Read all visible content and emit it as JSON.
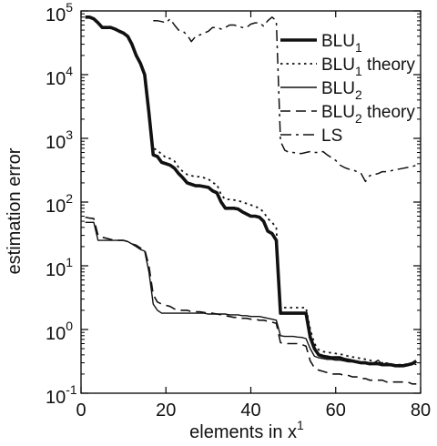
{
  "chart_data": {
    "type": "line",
    "title": "",
    "xlabel": "elements in x",
    "xlabel_sup": "1",
    "ylabel": "estimation error",
    "xlim": [
      0,
      80
    ],
    "ylim": [
      0.1,
      100000
    ],
    "yscale": "log",
    "grid": false,
    "legend_position": "top-right",
    "xticks": [
      {
        "value": 0,
        "label": "0"
      },
      {
        "value": 20,
        "label": "20"
      },
      {
        "value": 40,
        "label": "40"
      },
      {
        "value": 60,
        "label": "60"
      },
      {
        "value": 80,
        "label": "80"
      }
    ],
    "yticks": [
      {
        "value": 0.1,
        "base": "10",
        "exp": "-1"
      },
      {
        "value": 1,
        "base": "10",
        "exp": "0"
      },
      {
        "value": 10,
        "base": "10",
        "exp": "1"
      },
      {
        "value": 100,
        "base": "10",
        "exp": "2"
      },
      {
        "value": 1000,
        "base": "10",
        "exp": "3"
      },
      {
        "value": 10000,
        "base": "10",
        "exp": "4"
      },
      {
        "value": 100000,
        "base": "10",
        "exp": "5"
      }
    ],
    "series": [
      {
        "name": "BLU",
        "sub": "1",
        "suffix": "",
        "style": "solid-thick",
        "color": "#111111",
        "x": [
          1,
          2,
          3,
          4,
          5,
          6,
          7,
          8,
          9,
          10,
          11,
          12,
          13,
          14,
          15,
          16,
          17,
          18,
          19,
          20,
          21,
          22,
          23,
          24,
          25,
          26,
          27,
          28,
          29,
          30,
          31,
          32,
          33,
          34,
          35,
          36,
          37,
          38,
          39,
          40,
          41,
          42,
          43,
          44,
          45,
          46,
          47,
          48,
          49,
          50,
          51,
          52,
          53,
          54,
          55,
          56,
          57,
          58,
          59,
          60,
          61,
          62,
          63,
          64,
          65,
          66,
          67,
          68,
          69,
          70,
          71,
          72,
          73,
          74,
          75,
          76,
          77,
          78,
          79
        ],
        "y": [
          80000,
          80000,
          75000,
          65000,
          55000,
          55000,
          55000,
          52000,
          48000,
          45000,
          40000,
          30000,
          20000,
          15000,
          10000,
          2500,
          550,
          520,
          420,
          400,
          380,
          340,
          280,
          240,
          200,
          190,
          180,
          180,
          175,
          170,
          150,
          140,
          100,
          80,
          80,
          80,
          78,
          70,
          65,
          60,
          60,
          58,
          50,
          35,
          32,
          25,
          1.8,
          1.8,
          1.8,
          1.8,
          1.8,
          1.8,
          1.8,
          0.75,
          0.5,
          0.4,
          0.38,
          0.37,
          0.36,
          0.36,
          0.36,
          0.34,
          0.33,
          0.32,
          0.31,
          0.3,
          0.3,
          0.29,
          0.29,
          0.29,
          0.28,
          0.28,
          0.28,
          0.27,
          0.27,
          0.27,
          0.28,
          0.29,
          0.32
        ]
      },
      {
        "name": "BLU",
        "sub": "1",
        "suffix": " theory",
        "style": "dotted",
        "color": "#111111",
        "x": [
          1,
          2,
          3,
          4,
          5,
          6,
          7,
          8,
          9,
          10,
          11,
          12,
          13,
          14,
          15,
          16,
          17,
          18,
          19,
          20,
          21,
          22,
          23,
          24,
          25,
          26,
          27,
          28,
          29,
          30,
          31,
          32,
          33,
          34,
          35,
          36,
          37,
          38,
          39,
          40,
          41,
          42,
          43,
          44,
          45,
          46,
          47,
          48,
          49,
          50,
          51,
          52,
          53,
          54,
          55,
          56,
          57,
          58,
          59,
          60,
          61,
          62,
          63,
          64,
          65,
          66,
          67,
          68,
          69,
          70,
          71,
          72,
          73,
          74,
          75,
          76,
          77,
          78,
          79
        ],
        "y": [
          80000,
          80000,
          75000,
          65000,
          55000,
          55000,
          55000,
          52000,
          48000,
          45000,
          40000,
          30000,
          20000,
          15000,
          10000,
          2600,
          700,
          650,
          560,
          500,
          480,
          440,
          350,
          300,
          270,
          260,
          250,
          250,
          240,
          230,
          200,
          190,
          130,
          110,
          110,
          108,
          105,
          100,
          95,
          90,
          85,
          80,
          70,
          55,
          48,
          40,
          2.3,
          2.2,
          2.2,
          2.2,
          2.2,
          2.2,
          2.2,
          1.0,
          0.6,
          0.48,
          0.45,
          0.44,
          0.43,
          0.42,
          0.41,
          0.4,
          0.38,
          0.37,
          0.36,
          0.35,
          0.34,
          0.33,
          0.31,
          0.3,
          0.3,
          0.29,
          0.28,
          0.28,
          0.28,
          0.28,
          0.29,
          0.3,
          0.31
        ]
      },
      {
        "name": "BLU",
        "sub": "2",
        "suffix": "",
        "style": "solid-thin",
        "color": "#111111",
        "x": [
          1,
          2,
          3,
          4,
          5,
          6,
          7,
          8,
          9,
          10,
          11,
          12,
          13,
          14,
          15,
          16,
          17,
          18,
          19,
          20,
          21,
          22,
          23,
          24,
          25,
          26,
          27,
          28,
          29,
          30,
          31,
          32,
          33,
          34,
          35,
          36,
          37,
          38,
          39,
          40,
          41,
          42,
          43,
          44,
          45,
          46,
          47,
          48,
          49,
          50,
          51,
          52,
          53,
          54,
          55,
          56,
          57,
          58,
          59,
          60,
          61,
          62,
          63,
          64,
          65,
          66,
          67,
          68,
          69,
          70,
          71,
          72,
          73,
          74,
          75,
          76,
          77,
          78,
          79
        ],
        "y": [
          48,
          48,
          48,
          25,
          25,
          25,
          25,
          25,
          25,
          25,
          24,
          22,
          20,
          18,
          17,
          8,
          2.5,
          2.0,
          1.8,
          1.8,
          1.8,
          1.8,
          1.8,
          1.8,
          1.8,
          1.8,
          1.8,
          1.8,
          1.8,
          1.75,
          1.75,
          1.75,
          1.75,
          1.75,
          1.7,
          1.7,
          1.7,
          1.65,
          1.65,
          1.6,
          1.6,
          1.6,
          1.55,
          1.5,
          1.45,
          1.4,
          0.8,
          0.78,
          0.78,
          0.78,
          0.76,
          0.75,
          0.72,
          0.5,
          0.38,
          0.36,
          0.35,
          0.34,
          0.34,
          0.33,
          0.33,
          0.32,
          0.31,
          0.31,
          0.3,
          0.3,
          0.29,
          0.28,
          0.3,
          0.33,
          0.28,
          0.3,
          0.28,
          0.28,
          0.26,
          0.27,
          0.28,
          0.3,
          0.28
        ]
      },
      {
        "name": "BLU",
        "sub": "2",
        "suffix": " theory",
        "style": "dashed",
        "color": "#111111",
        "x": [
          1,
          2,
          3,
          4,
          5,
          6,
          7,
          8,
          9,
          10,
          11,
          12,
          13,
          14,
          15,
          16,
          17,
          18,
          19,
          20,
          21,
          22,
          23,
          24,
          25,
          26,
          27,
          28,
          29,
          30,
          31,
          32,
          33,
          34,
          35,
          36,
          37,
          38,
          39,
          40,
          41,
          42,
          43,
          44,
          45,
          46,
          47,
          48,
          49,
          50,
          51,
          52,
          53,
          54,
          55,
          56,
          57,
          58,
          59,
          60,
          61,
          62,
          63,
          64,
          65,
          66,
          67,
          68,
          69,
          70,
          71,
          72,
          73,
          74,
          75,
          76,
          77,
          78,
          79
        ],
        "y": [
          58,
          56,
          55,
          30,
          28,
          27,
          26,
          25,
          25,
          25,
          24,
          22,
          21,
          19,
          18,
          10,
          3.5,
          2.7,
          2.5,
          2.4,
          2.3,
          2.1,
          2.0,
          2.0,
          2.0,
          1.9,
          1.9,
          1.9,
          1.85,
          1.8,
          1.8,
          1.75,
          1.7,
          1.65,
          1.6,
          1.55,
          1.55,
          1.5,
          1.5,
          1.45,
          1.45,
          1.4,
          1.4,
          1.35,
          1.3,
          1.25,
          0.62,
          0.6,
          0.6,
          0.6,
          0.6,
          0.58,
          0.55,
          0.32,
          0.25,
          0.23,
          0.22,
          0.21,
          0.2,
          0.2,
          0.2,
          0.19,
          0.19,
          0.18,
          0.18,
          0.17,
          0.17,
          0.16,
          0.16,
          0.16,
          0.16,
          0.15,
          0.15,
          0.15,
          0.15,
          0.15,
          0.15,
          0.14,
          0.14
        ]
      },
      {
        "name": "LS",
        "sub": "",
        "suffix": "",
        "style": "dashdot",
        "color": "#111111",
        "x": [
          17,
          18,
          19,
          20,
          21,
          22,
          23,
          24,
          25,
          26,
          27,
          28,
          29,
          30,
          31,
          32,
          33,
          34,
          35,
          36,
          37,
          38,
          39,
          40,
          41,
          42,
          43,
          44,
          45,
          46,
          47,
          48,
          49,
          50,
          51,
          52,
          53,
          54,
          55,
          56,
          57,
          58,
          59,
          60,
          61,
          62,
          63,
          64,
          65,
          66,
          67,
          68,
          69,
          70,
          71,
          72,
          73,
          74,
          75,
          76,
          77,
          78,
          79
        ],
        "y": [
          70000,
          70000,
          68000,
          65000,
          75000,
          60000,
          50000,
          48000,
          42000,
          33000,
          40000,
          42000,
          45000,
          48000,
          55000,
          55000,
          52000,
          55000,
          60000,
          60000,
          58000,
          55000,
          55000,
          62000,
          65000,
          65000,
          58000,
          70000,
          80000,
          70000,
          900,
          650,
          600,
          600,
          580,
          580,
          600,
          620,
          600,
          600,
          620,
          550,
          500,
          450,
          380,
          350,
          330,
          320,
          300,
          280,
          210,
          260,
          270,
          280,
          300,
          300,
          310,
          320,
          330,
          340,
          350,
          360,
          380
        ]
      }
    ]
  }
}
